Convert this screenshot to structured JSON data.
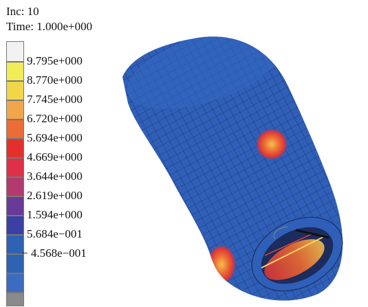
{
  "header": {
    "increment": "Inc: 10",
    "time": "Time: 1.000e+000"
  },
  "legend": {
    "swatch_colors": [
      "#f2f2f2",
      "#f2ec58",
      "#f2d64a",
      "#f2a64b",
      "#ec6c35",
      "#e3302c",
      "#de3048",
      "#b33a6e",
      "#6a3a98",
      "#3b3fa6",
      "#2e63b3",
      "#2e63b3",
      "#3c6cc0",
      "#8a8a8a"
    ],
    "labels": [
      "9.795e+000",
      "8.770e+000",
      "7.745e+000",
      "6.720e+000",
      "5.694e+000",
      "4.669e+000",
      "3.644e+000",
      "2.619e+000",
      "1.594e+000",
      "5.684e−001",
      "− 4.568e−001"
    ]
  },
  "model": {
    "body_color": "#2f5fb8",
    "mesh_color": "#1a2b55",
    "hot_color": "#e8443a"
  }
}
